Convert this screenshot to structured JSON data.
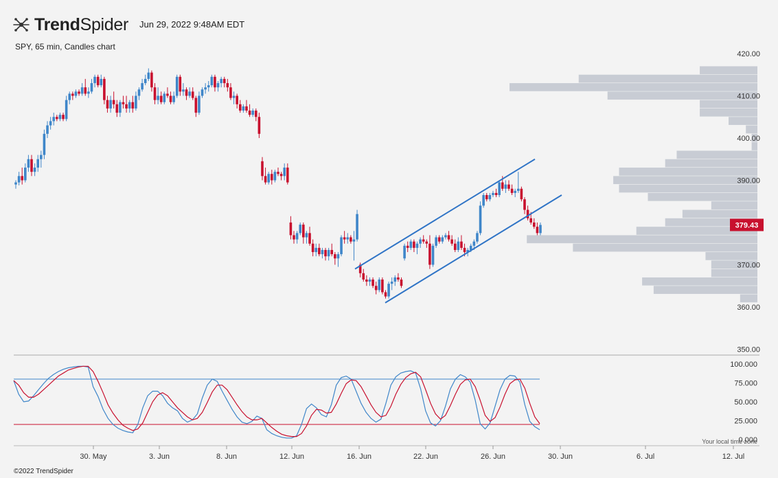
{
  "header": {
    "brand_bold": "Trend",
    "brand_light": "Spider",
    "datetime": "Jun 29, 2022 9:48AM EDT",
    "subtitle": "SPY, 65 min, Candles chart"
  },
  "footer": {
    "copyright": "©2022 TrendSpider",
    "timezone_note": "Your local time zone"
  },
  "colors": {
    "up": "#3f86c9",
    "down": "#c8102e",
    "channel": "#2f74c6",
    "volume_profile": "#c8ccd4",
    "osc_k": "#3f86c9",
    "osc_d": "#c8102e"
  },
  "chart_data": [
    {
      "type": "candlestick",
      "title": "",
      "ylim": [
        350,
        420
      ],
      "y_ticks": [
        "420.00",
        "410.00",
        "400.00",
        "390.00",
        "380.00",
        "370.00",
        "360.00",
        "350.00"
      ],
      "x_ticks": [
        "30. May",
        "3. Jun",
        "8. Jun",
        "12. Jun",
        "16. Jun",
        "22. Jun",
        "26. Jun",
        "30. Jun",
        "6. Jul",
        "12. Jul"
      ],
      "last_price": "379.43",
      "candles": [
        [
          389,
          390,
          388,
          389.5
        ],
        [
          389.5,
          392,
          388.8,
          391
        ],
        [
          391,
          393,
          389,
          390
        ],
        [
          390,
          394,
          389.5,
          393
        ],
        [
          393,
          396,
          392,
          395
        ],
        [
          395,
          396,
          391,
          392
        ],
        [
          392,
          394,
          391,
          393
        ],
        [
          393,
          396,
          392,
          395
        ],
        [
          395,
          397,
          393,
          396
        ],
        [
          396,
          402,
          395,
          401
        ],
        [
          401,
          404,
          400,
          403
        ],
        [
          403,
          405,
          402,
          404
        ],
        [
          404,
          406,
          403,
          405
        ],
        [
          405,
          405.5,
          404,
          404.5
        ],
        [
          404.5,
          406,
          404,
          405.5
        ],
        [
          405.5,
          406,
          404,
          404.5
        ],
        [
          404.5,
          410,
          404,
          409
        ],
        [
          409,
          411,
          408,
          410.5
        ],
        [
          410.5,
          411,
          409,
          410
        ],
        [
          410,
          411.5,
          409.5,
          411
        ],
        [
          411,
          411.5,
          410,
          410.5
        ],
        [
          410.5,
          413,
          410,
          412
        ],
        [
          412,
          414,
          410,
          410.5
        ],
        [
          410.5,
          412,
          409.5,
          411
        ],
        [
          411,
          414,
          410.5,
          413
        ],
        [
          413,
          415,
          412,
          414.5
        ],
        [
          414.5,
          415,
          412,
          412.5
        ],
        [
          412.5,
          415,
          412,
          414
        ],
        [
          414,
          414.5,
          408,
          409
        ],
        [
          409,
          410,
          406,
          407
        ],
        [
          407,
          410,
          406,
          409
        ],
        [
          409,
          411,
          407,
          408
        ],
        [
          408,
          409,
          405,
          406
        ],
        [
          406,
          409,
          405,
          408.5
        ],
        [
          408.5,
          410,
          407,
          408
        ],
        [
          408,
          410,
          406,
          407
        ],
        [
          407,
          409,
          406,
          408.5
        ],
        [
          408.5,
          410,
          406,
          407
        ],
        [
          407,
          411,
          406.5,
          410
        ],
        [
          410,
          412,
          409,
          411.5
        ],
        [
          411.5,
          414,
          411,
          413
        ],
        [
          413,
          415,
          412.5,
          414
        ],
        [
          414,
          416.5,
          413.5,
          415.5
        ],
        [
          415.5,
          416,
          411,
          412
        ],
        [
          412,
          413,
          408,
          409
        ],
        [
          409,
          412,
          408,
          410
        ],
        [
          410,
          411,
          408,
          408.5
        ],
        [
          408.5,
          411,
          408,
          410.5
        ],
        [
          410.5,
          412,
          409.5,
          410
        ],
        [
          410,
          411,
          408,
          408.5
        ],
        [
          408.5,
          411,
          408,
          410
        ],
        [
          410,
          415,
          409.5,
          414.5
        ],
        [
          414.5,
          415,
          410,
          411
        ],
        [
          411,
          413,
          410,
          411.5
        ],
        [
          411.5,
          412,
          409,
          410
        ],
        [
          410,
          412,
          409.5,
          411
        ],
        [
          411,
          412,
          409,
          409.5
        ],
        [
          409.5,
          410,
          405,
          406
        ],
        [
          406,
          411,
          405.5,
          410
        ],
        [
          410,
          412,
          409.5,
          411.5
        ],
        [
          411.5,
          413,
          410.5,
          412
        ],
        [
          412,
          413.5,
          411,
          412.5
        ],
        [
          412.5,
          415,
          412,
          414.5
        ],
        [
          414.5,
          415,
          411,
          412
        ],
        [
          412,
          413.5,
          411,
          413
        ],
        [
          413,
          414.5,
          412,
          414
        ],
        [
          414,
          414.5,
          412,
          413
        ],
        [
          413,
          414,
          411,
          412
        ],
        [
          412,
          413,
          409,
          409.5
        ],
        [
          409.5,
          411,
          408,
          410
        ],
        [
          410,
          410.5,
          407,
          408
        ],
        [
          408,
          409,
          406,
          406.5
        ],
        [
          406.5,
          408,
          406,
          407.5
        ],
        [
          407.5,
          409,
          406,
          406.5
        ],
        [
          406.5,
          408,
          405,
          405.5
        ],
        [
          405.5,
          407,
          405,
          406.5
        ],
        [
          406.5,
          407,
          404,
          405
        ],
        [
          405,
          406,
          400,
          401
        ],
        [
          394.5,
          395.5,
          390,
          391
        ],
        [
          391,
          393,
          389,
          389.5
        ],
        [
          389.5,
          392,
          389,
          391.5
        ],
        [
          391.5,
          392.5,
          389,
          390
        ],
        [
          390,
          392.5,
          389.5,
          392
        ],
        [
          392,
          393,
          391,
          391.5
        ],
        [
          391.5,
          392,
          390,
          391
        ],
        [
          391,
          394,
          390,
          393
        ],
        [
          393,
          394,
          389,
          389.5
        ],
        [
          380,
          381.5,
          376,
          377
        ],
        [
          377,
          378,
          375,
          376
        ],
        [
          376,
          378,
          375,
          377.5
        ],
        [
          377.5,
          380,
          377,
          379.5
        ],
        [
          379.5,
          380,
          375,
          376.5
        ],
        [
          376.5,
          378,
          375,
          377.5
        ],
        [
          377.5,
          379,
          374.5,
          375
        ],
        [
          375,
          376,
          372,
          373
        ],
        [
          373,
          375,
          372,
          374
        ],
        [
          374,
          375,
          372,
          372.5
        ],
        [
          372.5,
          374,
          371.5,
          373.5
        ],
        [
          373.5,
          374,
          371,
          372
        ],
        [
          372,
          374,
          371,
          373.5
        ],
        [
          373.5,
          375,
          372,
          372.5
        ],
        [
          372.5,
          373,
          370,
          371.5
        ],
        [
          371.5,
          373,
          369.5,
          372.5
        ],
        [
          372.5,
          377,
          372,
          376.5
        ],
        [
          376.5,
          378,
          375,
          376
        ],
        [
          376,
          377.5,
          375,
          376.5
        ],
        [
          376.5,
          377,
          375,
          375.5
        ],
        [
          375.5,
          378,
          371,
          376
        ],
        [
          376,
          383,
          375.5,
          382
        ],
        [
          370,
          370.5,
          367,
          368
        ],
        [
          368,
          369,
          366,
          366.5
        ],
        [
          366.5,
          367.5,
          365,
          366
        ],
        [
          366,
          367,
          365,
          366.5
        ],
        [
          366.5,
          367,
          364.5,
          365
        ],
        [
          365,
          366,
          363,
          364
        ],
        [
          364,
          367,
          363.5,
          366.5
        ],
        [
          366.5,
          367,
          363,
          363.5
        ],
        [
          363.5,
          364,
          362,
          362.5
        ],
        [
          362.5,
          366,
          362,
          365.5
        ],
        [
          365.5,
          367,
          364,
          366
        ],
        [
          366,
          367.5,
          365,
          367
        ],
        [
          367,
          368,
          366,
          366.5
        ],
        [
          366.5,
          367,
          364.5,
          365
        ],
        [
          371.5,
          375,
          371,
          374.5
        ],
        [
          374.5,
          375.5,
          373,
          374
        ],
        [
          374,
          376,
          373.5,
          375.5
        ],
        [
          375.5,
          376,
          373,
          374
        ],
        [
          374,
          375.5,
          372.5,
          375
        ],
        [
          375,
          376.5,
          374,
          376
        ],
        [
          376,
          377,
          375,
          375.5
        ],
        [
          375.5,
          376,
          374,
          375
        ],
        [
          375,
          377,
          369,
          370
        ],
        [
          370,
          375,
          369.5,
          374.5
        ],
        [
          374.5,
          377,
          374,
          376.5
        ],
        [
          376.5,
          377,
          375,
          375.5
        ],
        [
          375.5,
          377,
          375,
          376.5
        ],
        [
          376.5,
          377.5,
          376,
          377
        ],
        [
          377,
          378,
          375.5,
          376
        ],
        [
          376,
          377,
          374.5,
          375
        ],
        [
          375,
          376,
          373,
          373.5
        ],
        [
          373.5,
          376.5,
          373,
          375.5
        ],
        [
          375.5,
          377,
          373.5,
          374
        ],
        [
          374,
          375,
          372,
          373
        ],
        [
          373,
          374,
          372,
          373.5
        ],
        [
          373.5,
          375,
          373,
          374.5
        ],
        [
          374.5,
          376,
          373.5,
          375.5
        ],
        [
          375.5,
          378,
          375,
          377.5
        ],
        [
          377.5,
          385,
          377,
          384
        ],
        [
          384,
          387,
          383.5,
          386.5
        ],
        [
          386.5,
          387,
          385,
          385.5
        ],
        [
          385.5,
          387,
          385,
          386.5
        ],
        [
          386.5,
          387.5,
          386,
          387
        ],
        [
          387,
          388,
          386,
          386.5
        ],
        [
          386.5,
          390,
          386,
          389.5
        ],
        [
          389.5,
          391,
          387.5,
          388
        ],
        [
          388,
          390,
          387,
          389
        ],
        [
          389,
          390,
          387.5,
          388
        ],
        [
          388,
          389,
          386.5,
          387
        ],
        [
          387,
          388,
          386,
          387.5
        ],
        [
          387.5,
          392,
          387,
          388
        ],
        [
          388,
          388.5,
          385,
          385.5
        ],
        [
          385.5,
          386,
          382,
          383
        ],
        [
          383,
          384,
          380.5,
          381
        ],
        [
          381,
          382.5,
          379.5,
          380
        ],
        [
          380,
          381,
          378.5,
          379
        ],
        [
          379,
          380,
          377,
          377.5
        ],
        [
          377.5,
          380,
          377,
          379.43
        ]
      ],
      "channel_lines": [
        {
          "x": [
            "16. Jun",
            "28. Jun"
          ],
          "y": [
            369,
            395
          ]
        },
        {
          "x": [
            "18. Jun",
            "30. Jun"
          ],
          "y": [
            361,
            386.5
          ]
        }
      ],
      "volume_profile": [
        {
          "price": 416,
          "vol": 10
        },
        {
          "price": 414,
          "vol": 31
        },
        {
          "price": 412,
          "vol": 43
        },
        {
          "price": 410,
          "vol": 26
        },
        {
          "price": 408,
          "vol": 10
        },
        {
          "price": 406,
          "vol": 10
        },
        {
          "price": 404,
          "vol": 5
        },
        {
          "price": 402,
          "vol": 2
        },
        {
          "price": 400,
          "vol": 1
        },
        {
          "price": 398,
          "vol": 1
        },
        {
          "price": 396,
          "vol": 14
        },
        {
          "price": 394,
          "vol": 16
        },
        {
          "price": 392,
          "vol": 24
        },
        {
          "price": 390,
          "vol": 25
        },
        {
          "price": 388,
          "vol": 24
        },
        {
          "price": 386,
          "vol": 19
        },
        {
          "price": 384,
          "vol": 8
        },
        {
          "price": 382,
          "vol": 13
        },
        {
          "price": 380,
          "vol": 16
        },
        {
          "price": 378,
          "vol": 21
        },
        {
          "price": 376,
          "vol": 40
        },
        {
          "price": 374,
          "vol": 32
        },
        {
          "price": 372,
          "vol": 9
        },
        {
          "price": 370,
          "vol": 8
        },
        {
          "price": 368,
          "vol": 8
        },
        {
          "price": 366,
          "vol": 20
        },
        {
          "price": 364,
          "vol": 18
        },
        {
          "price": 362,
          "vol": 3
        }
      ]
    },
    {
      "type": "line",
      "title": "",
      "ylim": [
        0,
        100
      ],
      "y_ticks": [
        "100.000",
        "75.000",
        "50.000",
        "25.000",
        "0.000"
      ],
      "levels": [
        80,
        20
      ],
      "k": [
        78,
        60,
        50,
        51,
        58,
        66,
        74,
        81,
        86,
        90,
        93,
        95,
        96,
        97,
        97,
        96,
        70,
        57,
        40,
        28,
        20,
        15,
        12,
        10,
        9,
        20,
        42,
        58,
        64,
        64,
        58,
        48,
        42,
        38,
        28,
        23,
        26,
        34,
        55,
        72,
        80,
        77,
        64,
        52,
        40,
        30,
        23,
        21,
        24,
        31,
        28,
        13,
        8,
        5,
        3,
        2,
        2,
        5,
        20,
        41,
        47,
        42,
        33,
        30,
        46,
        72,
        82,
        84,
        80,
        64,
        48,
        36,
        28,
        23,
        27,
        48,
        72,
        83,
        88,
        90,
        91,
        88,
        67,
        38,
        22,
        18,
        25,
        44,
        67,
        80,
        86,
        83,
        76,
        52,
        21,
        14,
        22,
        44,
        66,
        80,
        85,
        84,
        76,
        46,
        24,
        17,
        13
      ],
      "d": [
        78,
        72,
        62,
        56,
        56,
        60,
        66,
        72,
        78,
        84,
        88,
        92,
        94,
        96,
        97,
        97,
        90,
        77,
        62,
        46,
        35,
        26,
        19,
        15,
        12,
        14,
        22,
        36,
        50,
        59,
        62,
        58,
        50,
        42,
        36,
        30,
        26,
        28,
        36,
        49,
        63,
        72,
        72,
        66,
        56,
        46,
        37,
        30,
        26,
        26,
        28,
        22,
        16,
        11,
        7,
        5,
        4,
        4,
        8,
        18,
        32,
        40,
        39,
        35,
        36,
        47,
        61,
        74,
        79,
        78,
        70,
        58,
        46,
        36,
        30,
        32,
        44,
        60,
        73,
        82,
        87,
        89,
        83,
        66,
        48,
        34,
        27,
        32,
        45,
        60,
        73,
        79,
        80,
        70,
        52,
        32,
        24,
        29,
        43,
        60,
        74,
        79,
        80,
        68,
        48,
        30,
        21
      ]
    }
  ]
}
